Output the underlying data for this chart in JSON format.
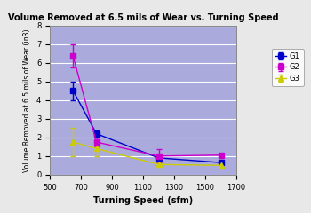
{
  "title": "Volume Removed at 6.5 mils of Wear vs. Turning Speed",
  "xlabel": "Turning Speed (sfm)",
  "ylabel": "Volume Removed at 6.5 mils of Wear (in3)",
  "xlim": [
    500,
    1700
  ],
  "ylim": [
    0,
    8
  ],
  "xticks": [
    500,
    700,
    900,
    1100,
    1300,
    1500,
    1700
  ],
  "yticks": [
    0,
    1,
    2,
    3,
    4,
    5,
    6,
    7,
    8
  ],
  "background_color": "#aaaadd",
  "fig_bg_color": "#e8e8e8",
  "G1": {
    "x": [
      650,
      800,
      1200,
      1600
    ],
    "y": [
      4.5,
      2.2,
      0.9,
      0.65
    ],
    "yerr_low": [
      0.5,
      0.15,
      0.05,
      0.05
    ],
    "yerr_high": [
      0.5,
      0.15,
      0.05,
      0.05
    ],
    "color": "#0000cc",
    "marker": "s",
    "label": "G1"
  },
  "G2": {
    "x": [
      650,
      800,
      1200,
      1600
    ],
    "y": [
      6.35,
      1.75,
      1.0,
      1.05
    ],
    "yerr_low": [
      0.6,
      0.25,
      0.35,
      0.05
    ],
    "yerr_high": [
      0.65,
      0.25,
      0.35,
      0.05
    ],
    "color": "#cc00cc",
    "marker": "s",
    "label": "G2"
  },
  "G3": {
    "x": [
      650,
      800,
      1200,
      1600
    ],
    "y": [
      1.75,
      1.4,
      0.55,
      0.5
    ],
    "yerr_low": [
      0.75,
      0.4,
      0.05,
      0.05
    ],
    "yerr_high": [
      0.75,
      0.05,
      0.05,
      0.05
    ],
    "color": "#cccc00",
    "marker": "^",
    "label": "G3"
  }
}
